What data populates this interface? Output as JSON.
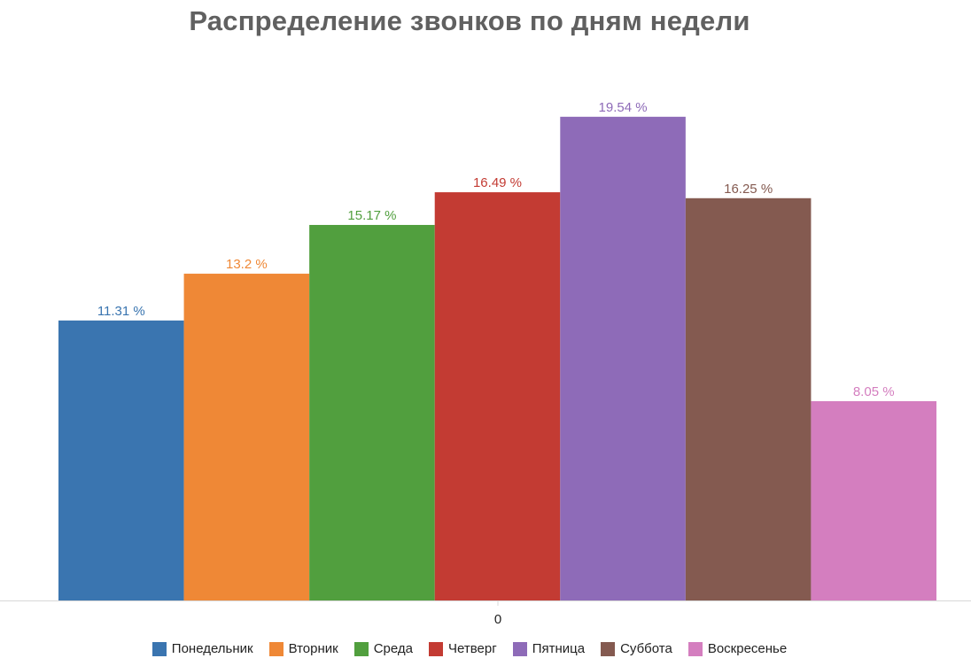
{
  "chart_data": {
    "type": "bar",
    "title": "Распределение звонков по дням недели",
    "categories": [
      "0"
    ],
    "ylim": [
      0,
      20.5
    ],
    "grid": false,
    "legend_position": "bottom",
    "value_suffix": " %",
    "series": [
      {
        "name": "Понедельник",
        "value": 11.31,
        "label": "11.31 %",
        "color": "#3a75b0"
      },
      {
        "name": "Вторник",
        "value": 13.2,
        "label": "13.2 %",
        "color": "#ef8836"
      },
      {
        "name": "Среда",
        "value": 15.17,
        "label": "15.17 %",
        "color": "#519f3e"
      },
      {
        "name": "Четверг",
        "value": 16.49,
        "label": "16.49 %",
        "color": "#c33b33"
      },
      {
        "name": "Пятница",
        "value": 19.54,
        "label": "19.54 %",
        "color": "#8e6bb8"
      },
      {
        "name": "Суббота",
        "value": 16.25,
        "label": "16.25 %",
        "color": "#845a50"
      },
      {
        "name": "Воскресенье",
        "value": 8.05,
        "label": "8.05 %",
        "color": "#d47ebf"
      }
    ]
  }
}
